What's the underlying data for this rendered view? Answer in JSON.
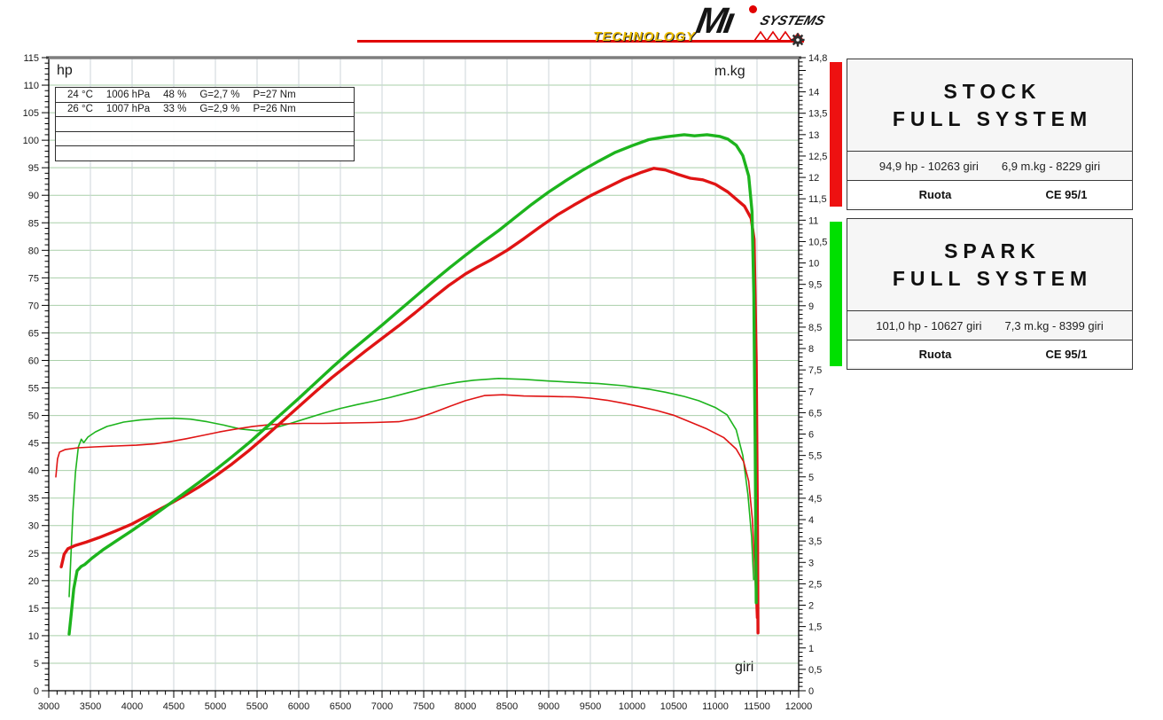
{
  "logo": {
    "technology": "TECHNOLOGY",
    "brand": "Mı",
    "systems": "SYSTEMS",
    "red": "#e10000",
    "yellow": "#efbf04"
  },
  "axis_units": {
    "left": "hp",
    "right": "m.kg",
    "bottom": "giri"
  },
  "chart_data": {
    "type": "line",
    "x_axis": {
      "label": "giri",
      "min": 3000,
      "max": 12000,
      "major_step": 500,
      "minor_step": 100
    },
    "y_left": {
      "label": "hp",
      "min": 0,
      "max": 115,
      "major_step": 5,
      "minor_step": 1
    },
    "y_right": {
      "label": "m.kg",
      "min": 0,
      "max": 14.8,
      "major_step": 0.5,
      "minor_step": 0.1,
      "top_label": "14,8"
    },
    "grid": {
      "h_color": "#a9cfa9",
      "v_color": "#ccd4da",
      "legend_position": "right"
    },
    "info_box_rows": [
      [
        "24 °C",
        "1006 hPa",
        "48 %",
        "G=2,7 %",
        "P=27 Nm"
      ],
      [
        "26 °C",
        "1007 hPa",
        "33 %",
        "G=2,9 %",
        "P=26 Nm"
      ],
      [],
      [],
      []
    ],
    "series": [
      {
        "name": "spark-full-system-torque",
        "unit": "m.kg",
        "axis": "right",
        "color": "#1db41d",
        "width": 1.6,
        "points": [
          [
            3245,
            2.2
          ],
          [
            3265,
            3.1
          ],
          [
            3290,
            4.2
          ],
          [
            3320,
            5.1
          ],
          [
            3355,
            5.7
          ],
          [
            3390,
            5.88
          ],
          [
            3420,
            5.8
          ],
          [
            3470,
            5.93
          ],
          [
            3560,
            6.05
          ],
          [
            3700,
            6.18
          ],
          [
            3900,
            6.28
          ],
          [
            4100,
            6.33
          ],
          [
            4300,
            6.36
          ],
          [
            4500,
            6.37
          ],
          [
            4700,
            6.35
          ],
          [
            4900,
            6.29
          ],
          [
            5100,
            6.21
          ],
          [
            5300,
            6.12
          ],
          [
            5500,
            6.08
          ],
          [
            5700,
            6.14
          ],
          [
            5900,
            6.25
          ],
          [
            6100,
            6.37
          ],
          [
            6300,
            6.49
          ],
          [
            6500,
            6.6
          ],
          [
            6700,
            6.69
          ],
          [
            6900,
            6.77
          ],
          [
            7100,
            6.86
          ],
          [
            7300,
            6.96
          ],
          [
            7500,
            7.06
          ],
          [
            7700,
            7.14
          ],
          [
            7900,
            7.21
          ],
          [
            8100,
            7.26
          ],
          [
            8399,
            7.3
          ],
          [
            8700,
            7.28
          ],
          [
            9000,
            7.24
          ],
          [
            9300,
            7.21
          ],
          [
            9600,
            7.18
          ],
          [
            9900,
            7.13
          ],
          [
            10200,
            7.05
          ],
          [
            10400,
            6.98
          ],
          [
            10627,
            6.88
          ],
          [
            10800,
            6.78
          ],
          [
            11000,
            6.62
          ],
          [
            11140,
            6.45
          ],
          [
            11250,
            6.1
          ],
          [
            11330,
            5.5
          ],
          [
            11390,
            4.6
          ],
          [
            11435,
            3.6
          ],
          [
            11460,
            2.6
          ]
        ]
      },
      {
        "name": "stock-full-system-torque",
        "unit": "m.kg",
        "axis": "right",
        "color": "#e01414",
        "width": 1.6,
        "points": [
          [
            3085,
            5.0
          ],
          [
            3105,
            5.42
          ],
          [
            3130,
            5.58
          ],
          [
            3200,
            5.64
          ],
          [
            3350,
            5.68
          ],
          [
            3550,
            5.7
          ],
          [
            3800,
            5.72
          ],
          [
            4050,
            5.74
          ],
          [
            4270,
            5.77
          ],
          [
            4450,
            5.82
          ],
          [
            4650,
            5.89
          ],
          [
            4850,
            5.97
          ],
          [
            5050,
            6.05
          ],
          [
            5250,
            6.12
          ],
          [
            5450,
            6.18
          ],
          [
            5650,
            6.22
          ],
          [
            5850,
            6.24
          ],
          [
            6050,
            6.25
          ],
          [
            6300,
            6.25
          ],
          [
            6600,
            6.26
          ],
          [
            6900,
            6.27
          ],
          [
            7200,
            6.29
          ],
          [
            7400,
            6.36
          ],
          [
            7600,
            6.49
          ],
          [
            7800,
            6.64
          ],
          [
            8000,
            6.78
          ],
          [
            8229,
            6.9
          ],
          [
            8450,
            6.92
          ],
          [
            8700,
            6.89
          ],
          [
            9000,
            6.88
          ],
          [
            9300,
            6.87
          ],
          [
            9500,
            6.84
          ],
          [
            9700,
            6.79
          ],
          [
            9900,
            6.72
          ],
          [
            10100,
            6.64
          ],
          [
            10300,
            6.55
          ],
          [
            10500,
            6.44
          ],
          [
            10700,
            6.28
          ],
          [
            10900,
            6.12
          ],
          [
            11100,
            5.92
          ],
          [
            11250,
            5.65
          ],
          [
            11340,
            5.35
          ],
          [
            11400,
            4.9
          ],
          [
            11445,
            4.0
          ],
          [
            11475,
            2.8
          ],
          [
            11495,
            1.7
          ]
        ]
      },
      {
        "name": "stock-full-system-hp",
        "unit": "hp",
        "axis": "left",
        "color": "#e01414",
        "width": 3.4,
        "points": [
          [
            3150,
            22.5
          ],
          [
            3185,
            24.8
          ],
          [
            3230,
            25.8
          ],
          [
            3320,
            26.4
          ],
          [
            3450,
            27
          ],
          [
            3600,
            27.8
          ],
          [
            3800,
            29
          ],
          [
            4000,
            30.3
          ],
          [
            4200,
            31.9
          ],
          [
            4400,
            33.5
          ],
          [
            4600,
            35.2
          ],
          [
            4800,
            37
          ],
          [
            5000,
            39
          ],
          [
            5200,
            41.2
          ],
          [
            5400,
            43.6
          ],
          [
            5600,
            46.2
          ],
          [
            5800,
            48.9
          ],
          [
            6000,
            51.6
          ],
          [
            6200,
            54.3
          ],
          [
            6400,
            56.9
          ],
          [
            6600,
            59.3
          ],
          [
            6800,
            61.7
          ],
          [
            7000,
            64
          ],
          [
            7200,
            66.3
          ],
          [
            7400,
            68.7
          ],
          [
            7600,
            71.2
          ],
          [
            7800,
            73.6
          ],
          [
            8000,
            75.7
          ],
          [
            8150,
            77
          ],
          [
            8300,
            78.2
          ],
          [
            8500,
            80
          ],
          [
            8700,
            82.1
          ],
          [
            8900,
            84.3
          ],
          [
            9100,
            86.4
          ],
          [
            9300,
            88.2
          ],
          [
            9500,
            89.9
          ],
          [
            9700,
            91.4
          ],
          [
            9900,
            92.9
          ],
          [
            10100,
            94.1
          ],
          [
            10263,
            94.9
          ],
          [
            10400,
            94.6
          ],
          [
            10550,
            93.8
          ],
          [
            10700,
            93.1
          ],
          [
            10850,
            92.8
          ],
          [
            11000,
            92
          ],
          [
            11150,
            90.6
          ],
          [
            11250,
            89.3
          ],
          [
            11350,
            88
          ],
          [
            11430,
            85.8
          ],
          [
            11465,
            82
          ],
          [
            11490,
            60
          ],
          [
            11505,
            30
          ],
          [
            11512,
            10.5
          ]
        ]
      },
      {
        "name": "spark-full-system-hp",
        "unit": "hp",
        "axis": "left",
        "color": "#1db41d",
        "width": 3.4,
        "points": [
          [
            3245,
            10.3
          ],
          [
            3270,
            14
          ],
          [
            3300,
            18.5
          ],
          [
            3340,
            21.8
          ],
          [
            3390,
            22.6
          ],
          [
            3430,
            22.9
          ],
          [
            3520,
            24.1
          ],
          [
            3650,
            25.6
          ],
          [
            3800,
            27.1
          ],
          [
            4000,
            29.1
          ],
          [
            4200,
            31.2
          ],
          [
            4400,
            33.4
          ],
          [
            4600,
            35.6
          ],
          [
            4800,
            37.8
          ],
          [
            5000,
            40.1
          ],
          [
            5200,
            42.5
          ],
          [
            5400,
            45
          ],
          [
            5600,
            47.7
          ],
          [
            5800,
            50.4
          ],
          [
            6000,
            53.1
          ],
          [
            6200,
            55.9
          ],
          [
            6400,
            58.7
          ],
          [
            6600,
            61.4
          ],
          [
            6800,
            63.9
          ],
          [
            7000,
            66.4
          ],
          [
            7200,
            69
          ],
          [
            7400,
            71.6
          ],
          [
            7600,
            74.2
          ],
          [
            7800,
            76.7
          ],
          [
            8000,
            79.1
          ],
          [
            8200,
            81.4
          ],
          [
            8400,
            83.6
          ],
          [
            8600,
            86
          ],
          [
            8800,
            88.4
          ],
          [
            9000,
            90.6
          ],
          [
            9200,
            92.6
          ],
          [
            9400,
            94.5
          ],
          [
            9600,
            96.2
          ],
          [
            9800,
            97.8
          ],
          [
            10000,
            99
          ],
          [
            10200,
            100.1
          ],
          [
            10400,
            100.6
          ],
          [
            10627,
            101
          ],
          [
            10750,
            100.8
          ],
          [
            10900,
            101
          ],
          [
            11050,
            100.7
          ],
          [
            11150,
            100.2
          ],
          [
            11250,
            99.1
          ],
          [
            11330,
            97.2
          ],
          [
            11400,
            93.5
          ],
          [
            11440,
            87
          ],
          [
            11462,
            72
          ],
          [
            11478,
            45
          ],
          [
            11490,
            16
          ]
        ]
      }
    ]
  },
  "legend": {
    "boxes": [
      {
        "id": "stock",
        "bar_color": "#ee1111",
        "title1": "STOCK",
        "title2": "FULL SYSTEM",
        "stat_hp": "94,9 hp - 10263 giri",
        "stat_torque": "6,9 m.kg - 8229 giri",
        "footer_left": "Ruota",
        "footer_right": "CE 95/1"
      },
      {
        "id": "spark",
        "bar_color": "#00e000",
        "title1": "SPARK",
        "title2": "FULL SYSTEM",
        "stat_hp": "101,0 hp - 10627 giri",
        "stat_torque": "7,3 m.kg - 8399 giri",
        "footer_left": "Ruota",
        "footer_right": "CE 95/1"
      }
    ]
  }
}
